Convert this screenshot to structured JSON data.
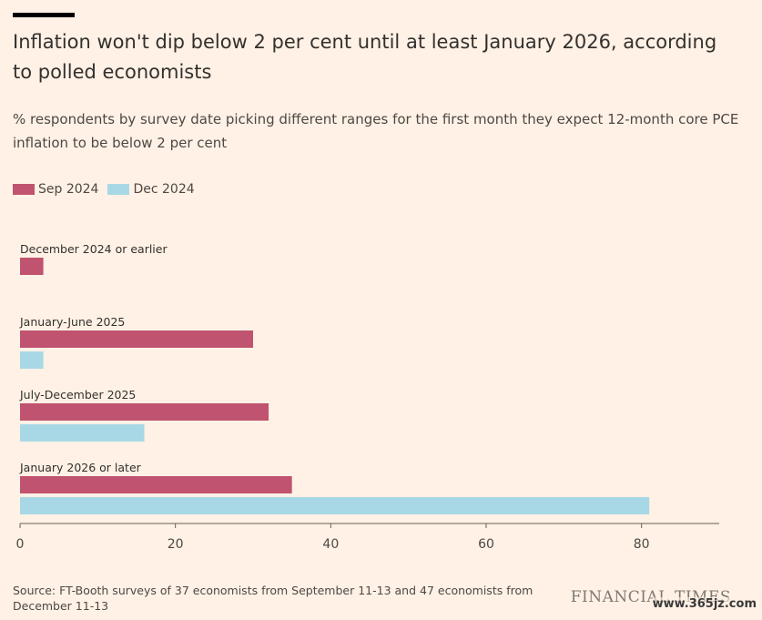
{
  "header": {
    "title": "Inflation won't dip below 2 per cent until at least January 2026, according to polled economists",
    "subtitle": "% respondents by survey date picking different ranges for the first month they expect 12-month core PCE inflation to be below 2 per cent"
  },
  "legend": [
    {
      "label": "Sep 2024",
      "color": "#C0536F"
    },
    {
      "label": "Dec 2024",
      "color": "#A8D8E6"
    }
  ],
  "chart_data": {
    "type": "bar",
    "orientation": "horizontal",
    "categories": [
      "December 2024 or earlier",
      "January-June 2025",
      "July-December 2025",
      "January 2026 or later"
    ],
    "series": [
      {
        "name": "Sep 2024",
        "color": "#C0536F",
        "values": [
          3,
          30,
          32,
          35
        ]
      },
      {
        "name": "Dec 2024",
        "color": "#A8D8E6",
        "values": [
          0,
          3,
          16,
          81
        ]
      }
    ],
    "xlim": [
      0,
      90
    ],
    "xticks": [
      "0",
      "20",
      "40",
      "60",
      "80"
    ],
    "grid": false,
    "legend_position": "top-left"
  },
  "footer": {
    "source": "Source: FT-Booth surveys of 37 economists from September 11-13 and 47 economists from December 11-13",
    "brand": "FINANCIAL TIMES",
    "watermark": "www.365jz.com"
  }
}
